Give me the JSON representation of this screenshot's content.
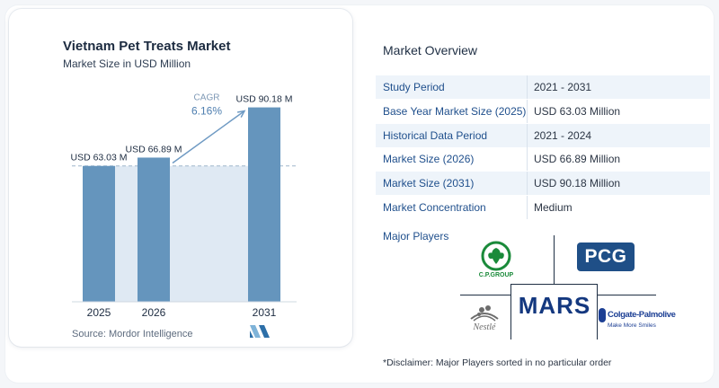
{
  "chart_data": {
    "type": "bar",
    "title": "Vietnam Pet Treats Market",
    "subtitle": "Market Size in USD Million",
    "categories": [
      "2025",
      "2026",
      "2031"
    ],
    "values": [
      63.03,
      66.89,
      90.18
    ],
    "data_labels": [
      "USD 63.03 M",
      "USD 66.89 M",
      "USD 90.18 M"
    ],
    "annotation": {
      "label": "CAGR",
      "value": "6.16%",
      "from": "2026",
      "to": "2031"
    },
    "reference_line": 63.03,
    "ylim": [
      0,
      100
    ],
    "grid": false,
    "bar_color": "#6595bd",
    "band_color": "#dfe9f3",
    "arrow_color": "#6f9ac3"
  },
  "source": "Source:  Mordor Intelligence",
  "overview": {
    "title": "Market Overview",
    "rows": [
      {
        "label": "Study Period",
        "value": "2021 - 2031"
      },
      {
        "label": "Base Year Market Size (2025)",
        "value": "USD 63.03 Million"
      },
      {
        "label": "Historical Data Period",
        "value": "2021 - 2024"
      },
      {
        "label": "Market Size (2026)",
        "value": "USD 66.89 Million"
      },
      {
        "label": "Market Size (2031)",
        "value": "USD 90.18 Million"
      },
      {
        "label": "Market Concentration",
        "value": "Medium"
      }
    ]
  },
  "players": {
    "title": "Major Players",
    "logos": {
      "cp": "C.P.GROUP",
      "pcg": "PCG",
      "nestle": "Nestlé",
      "mars": "MARS",
      "colgate": "Colgate-Palmolive",
      "colgate_tagline": "Make More Smiles"
    }
  },
  "disclaimer": "*Disclaimer: Major Players sorted in no particular order"
}
